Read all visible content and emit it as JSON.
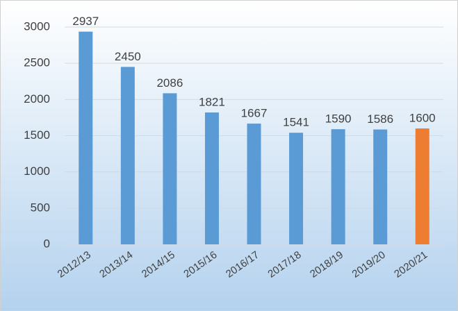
{
  "chart_data": {
    "type": "bar",
    "categories": [
      "2012/13",
      "2013/14",
      "2014/15",
      "2015/16",
      "2016/17",
      "2017/18",
      "2018/19",
      "2019/20",
      "2020/21"
    ],
    "values": [
      2937,
      2450,
      2086,
      1821,
      1667,
      1541,
      1590,
      1586,
      1600
    ],
    "colors": [
      "#5b9bd5",
      "#5b9bd5",
      "#5b9bd5",
      "#5b9bd5",
      "#5b9bd5",
      "#5b9bd5",
      "#5b9bd5",
      "#5b9bd5",
      "#ed7d31"
    ],
    "ylim": [
      0,
      3000
    ],
    "yticks": [
      0,
      500,
      1000,
      1500,
      2000,
      2500,
      3000
    ],
    "grid": true
  }
}
